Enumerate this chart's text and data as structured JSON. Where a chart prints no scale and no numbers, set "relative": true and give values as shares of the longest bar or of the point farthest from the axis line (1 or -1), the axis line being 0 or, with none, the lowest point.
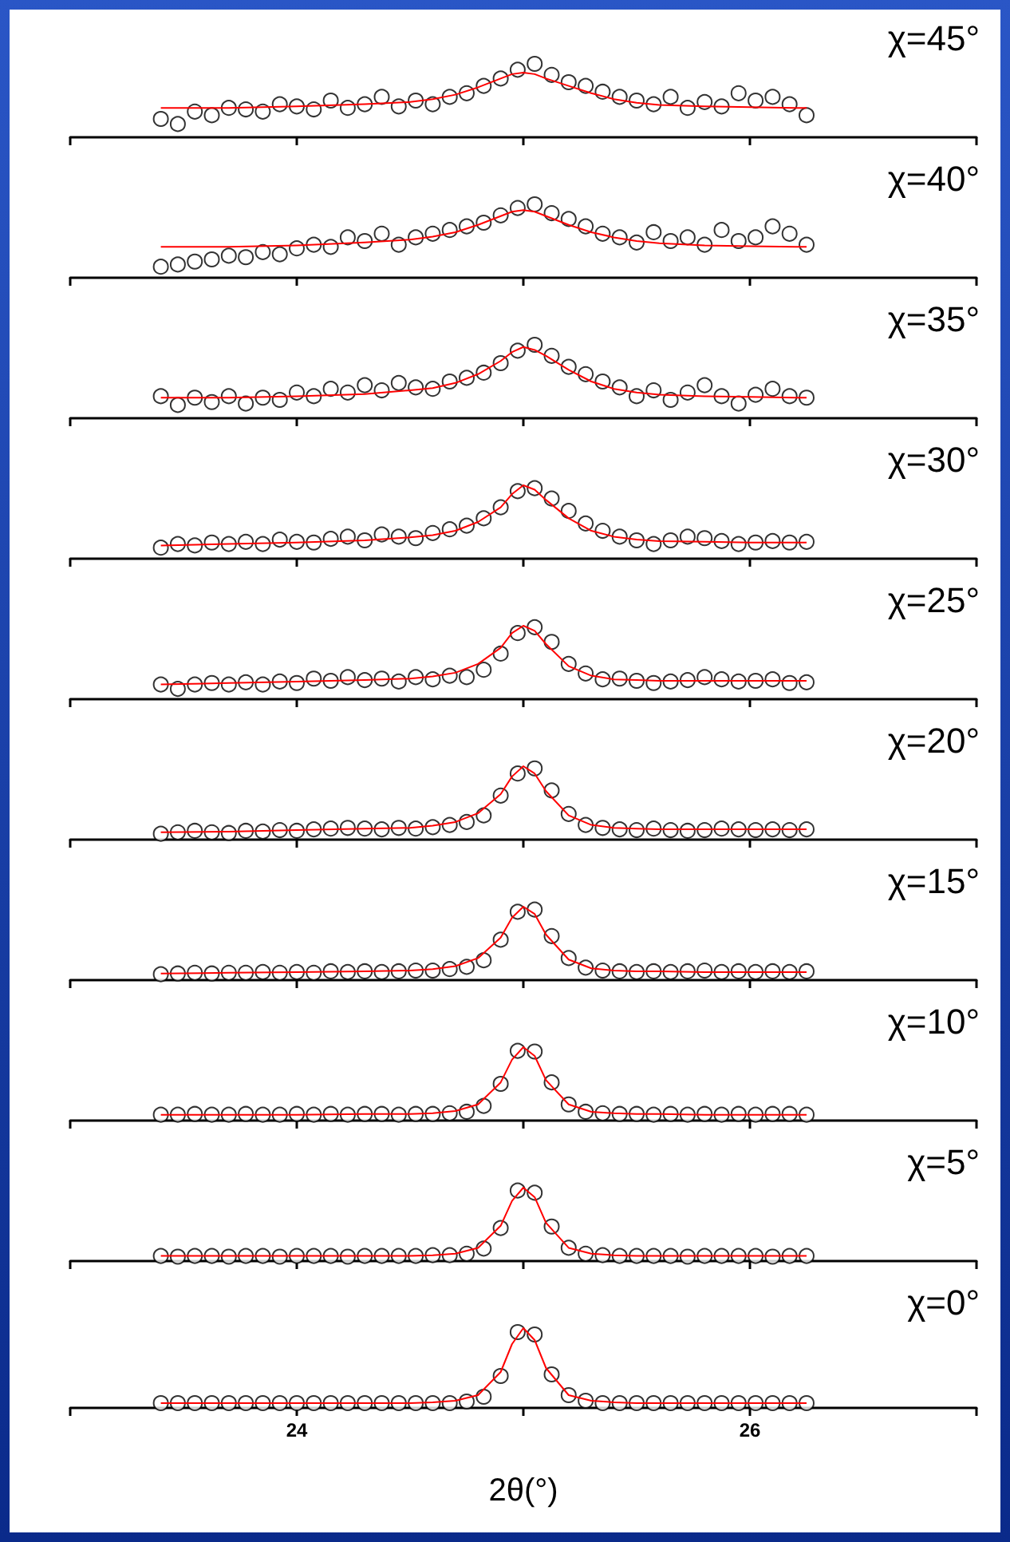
{
  "chart_data": [
    {
      "type": "scatter",
      "title": "χ=45°",
      "relative": true,
      "xlim": [
        23,
        27
      ],
      "xticks": [
        {
          "value": 23,
          "label": null
        },
        {
          "value": 24,
          "label": null
        },
        {
          "value": 25,
          "label": null
        },
        {
          "value": 26,
          "label": null
        },
        {
          "value": 27,
          "label": null
        }
      ],
      "tick_labels": false,
      "grid": false,
      "legend": false,
      "x": [
        23.4,
        23.475,
        23.55,
        23.625,
        23.7,
        23.775,
        23.85,
        23.925,
        24.0,
        24.075,
        24.15,
        24.225,
        24.3,
        24.375,
        24.45,
        24.525,
        24.6,
        24.675,
        24.75,
        24.825,
        24.9,
        24.975,
        25.05,
        25.125,
        25.2,
        25.275,
        25.35,
        25.425,
        25.5,
        25.575,
        25.65,
        25.725,
        25.8,
        25.875,
        25.95,
        26.025,
        26.1,
        26.175,
        26.25
      ],
      "series": [
        {
          "type": "scatter",
          "marker": "circle",
          "color": "#ffffff",
          "values": [
            0.25,
            0.18,
            0.35,
            0.3,
            0.4,
            0.38,
            0.35,
            0.45,
            0.42,
            0.38,
            0.5,
            0.4,
            0.45,
            0.55,
            0.42,
            0.5,
            0.45,
            0.55,
            0.6,
            0.7,
            0.8,
            0.92,
            1,
            0.85,
            0.75,
            0.7,
            0.62,
            0.55,
            0.5,
            0.45,
            0.55,
            0.4,
            0.48,
            0.42,
            0.6,
            0.5,
            0.55,
            0.45,
            0.3
          ]
        },
        {
          "type": "line",
          "marker": "none",
          "color": "#ff0000",
          "x": [
            23.4,
            23.7,
            24.0,
            24.3,
            24.5,
            24.6,
            24.7,
            24.8,
            24.9,
            24.95,
            25.0,
            25.05,
            25.1,
            25.2,
            25.3,
            25.4,
            25.5,
            25.6,
            25.8,
            26.0,
            26.2,
            26.25
          ],
          "values": [
            0.4,
            0.4,
            0.42,
            0.45,
            0.48,
            0.52,
            0.58,
            0.68,
            0.8,
            0.86,
            0.88,
            0.86,
            0.8,
            0.7,
            0.6,
            0.52,
            0.47,
            0.44,
            0.42,
            0.41,
            0.4,
            0.4
          ]
        }
      ]
    },
    {
      "type": "scatter",
      "title": "χ=40°",
      "relative": true,
      "xlim": [
        23,
        27
      ],
      "xticks": [
        {
          "value": 23,
          "label": null
        },
        {
          "value": 24,
          "label": null
        },
        {
          "value": 25,
          "label": null
        },
        {
          "value": 26,
          "label": null
        },
        {
          "value": 27,
          "label": null
        }
      ],
      "tick_labels": false,
      "grid": false,
      "legend": false,
      "x": [
        23.4,
        23.475,
        23.55,
        23.625,
        23.7,
        23.775,
        23.85,
        23.925,
        24.0,
        24.075,
        24.15,
        24.225,
        24.3,
        24.375,
        24.45,
        24.525,
        24.6,
        24.675,
        24.75,
        24.825,
        24.9,
        24.975,
        25.05,
        25.125,
        25.2,
        25.275,
        25.35,
        25.425,
        25.5,
        25.575,
        25.65,
        25.725,
        25.8,
        25.875,
        25.95,
        26.025,
        26.1,
        26.175,
        26.25
      ],
      "series": [
        {
          "type": "scatter",
          "marker": "circle",
          "color": "#ffffff",
          "values": [
            0.15,
            0.18,
            0.22,
            0.25,
            0.3,
            0.28,
            0.35,
            0.32,
            0.4,
            0.45,
            0.42,
            0.55,
            0.5,
            0.6,
            0.45,
            0.55,
            0.6,
            0.65,
            0.7,
            0.75,
            0.85,
            0.95,
            1,
            0.88,
            0.8,
            0.7,
            0.6,
            0.55,
            0.48,
            0.62,
            0.5,
            0.55,
            0.45,
            0.65,
            0.5,
            0.55,
            0.7,
            0.6,
            0.45
          ]
        },
        {
          "type": "line",
          "marker": "none",
          "color": "#ff0000",
          "x": [
            23.4,
            23.7,
            24.0,
            24.3,
            24.5,
            24.6,
            24.7,
            24.8,
            24.9,
            24.95,
            25.0,
            25.05,
            25.1,
            25.2,
            25.3,
            25.4,
            25.5,
            25.6,
            25.8,
            26.0,
            26.2,
            26.25
          ],
          "values": [
            0.42,
            0.42,
            0.44,
            0.48,
            0.52,
            0.56,
            0.62,
            0.72,
            0.84,
            0.9,
            0.92,
            0.9,
            0.84,
            0.72,
            0.62,
            0.55,
            0.5,
            0.47,
            0.44,
            0.43,
            0.42,
            0.42
          ]
        }
      ]
    },
    {
      "type": "scatter",
      "title": "χ=35°",
      "relative": true,
      "xlim": [
        23,
        27
      ],
      "xticks": [
        {
          "value": 23,
          "label": null
        },
        {
          "value": 24,
          "label": null
        },
        {
          "value": 25,
          "label": null
        },
        {
          "value": 26,
          "label": null
        },
        {
          "value": 27,
          "label": null
        }
      ],
      "tick_labels": false,
      "grid": false,
      "legend": false,
      "x": [
        23.4,
        23.475,
        23.55,
        23.625,
        23.7,
        23.775,
        23.85,
        23.925,
        24.0,
        24.075,
        24.15,
        24.225,
        24.3,
        24.375,
        24.45,
        24.525,
        24.6,
        24.675,
        24.75,
        24.825,
        24.9,
        24.975,
        25.05,
        25.125,
        25.2,
        25.275,
        25.35,
        25.425,
        25.5,
        25.575,
        25.65,
        25.725,
        25.8,
        25.875,
        25.95,
        26.025,
        26.1,
        26.175,
        26.25
      ],
      "series": [
        {
          "type": "scatter",
          "marker": "circle",
          "color": "#ffffff",
          "values": [
            0.3,
            0.18,
            0.28,
            0.22,
            0.3,
            0.2,
            0.28,
            0.25,
            0.35,
            0.3,
            0.4,
            0.35,
            0.45,
            0.38,
            0.48,
            0.42,
            0.4,
            0.5,
            0.55,
            0.62,
            0.75,
            0.92,
            1,
            0.85,
            0.7,
            0.6,
            0.5,
            0.42,
            0.3,
            0.38,
            0.25,
            0.35,
            0.45,
            0.3,
            0.2,
            0.32,
            0.4,
            0.3,
            0.28
          ]
        },
        {
          "type": "line",
          "marker": "none",
          "color": "#ff0000",
          "x": [
            23.4,
            23.7,
            24.0,
            24.3,
            24.5,
            24.6,
            24.7,
            24.8,
            24.9,
            24.95,
            25.0,
            25.05,
            25.1,
            25.2,
            25.3,
            25.4,
            25.5,
            25.6,
            25.8,
            26.0,
            26.2,
            26.25
          ],
          "values": [
            0.28,
            0.28,
            0.3,
            0.33,
            0.38,
            0.41,
            0.48,
            0.6,
            0.78,
            0.9,
            0.97,
            0.93,
            0.85,
            0.66,
            0.5,
            0.4,
            0.35,
            0.32,
            0.3,
            0.29,
            0.28,
            0.28
          ]
        }
      ]
    },
    {
      "type": "scatter",
      "title": "χ=30°",
      "relative": true,
      "xlim": [
        23,
        27
      ],
      "xticks": [
        {
          "value": 23,
          "label": null
        },
        {
          "value": 24,
          "label": null
        },
        {
          "value": 25,
          "label": null
        },
        {
          "value": 26,
          "label": null
        },
        {
          "value": 27,
          "label": null
        }
      ],
      "tick_labels": false,
      "grid": false,
      "legend": false,
      "x": [
        23.4,
        23.475,
        23.55,
        23.625,
        23.7,
        23.775,
        23.85,
        23.925,
        24.0,
        24.075,
        24.15,
        24.225,
        24.3,
        24.375,
        24.45,
        24.525,
        24.6,
        24.675,
        24.75,
        24.825,
        24.9,
        24.975,
        25.05,
        25.125,
        25.2,
        25.275,
        25.35,
        25.425,
        25.5,
        25.575,
        25.65,
        25.725,
        25.8,
        25.875,
        25.95,
        26.025,
        26.1,
        26.175,
        26.25
      ],
      "series": [
        {
          "type": "scatter",
          "marker": "circle",
          "color": "#ffffff",
          "values": [
            0.15,
            0.2,
            0.18,
            0.22,
            0.2,
            0.23,
            0.2,
            0.26,
            0.23,
            0.22,
            0.27,
            0.3,
            0.25,
            0.33,
            0.3,
            0.28,
            0.35,
            0.4,
            0.45,
            0.55,
            0.7,
            0.92,
            0.96,
            0.82,
            0.65,
            0.48,
            0.38,
            0.3,
            0.25,
            0.2,
            0.25,
            0.3,
            0.28,
            0.24,
            0.2,
            0.22,
            0.24,
            0.22,
            0.23
          ]
        },
        {
          "type": "line",
          "marker": "none",
          "color": "#ff0000",
          "x": [
            23.4,
            23.7,
            24.0,
            24.3,
            24.5,
            24.6,
            24.7,
            24.8,
            24.9,
            24.95,
            25.0,
            25.05,
            25.1,
            25.2,
            25.3,
            25.4,
            25.5,
            25.6,
            25.8,
            26.0,
            26.2,
            26.25
          ],
          "values": [
            0.18,
            0.2,
            0.22,
            0.25,
            0.29,
            0.32,
            0.38,
            0.5,
            0.7,
            0.88,
            1,
            0.94,
            0.8,
            0.55,
            0.38,
            0.3,
            0.26,
            0.24,
            0.23,
            0.22,
            0.22,
            0.22
          ]
        }
      ]
    },
    {
      "type": "scatter",
      "title": "χ=25°",
      "relative": true,
      "xlim": [
        23,
        27
      ],
      "xticks": [
        {
          "value": 23,
          "label": null
        },
        {
          "value": 24,
          "label": null
        },
        {
          "value": 25,
          "label": null
        },
        {
          "value": 26,
          "label": null
        },
        {
          "value": 27,
          "label": null
        }
      ],
      "tick_labels": false,
      "grid": false,
      "legend": false,
      "x": [
        23.4,
        23.475,
        23.55,
        23.625,
        23.7,
        23.775,
        23.85,
        23.925,
        24.0,
        24.075,
        24.15,
        24.225,
        24.3,
        24.375,
        24.45,
        24.525,
        24.6,
        24.675,
        24.75,
        24.825,
        24.9,
        24.975,
        25.05,
        25.125,
        25.2,
        25.275,
        25.35,
        25.425,
        25.5,
        25.575,
        25.65,
        25.725,
        25.8,
        25.875,
        25.95,
        26.025,
        26.1,
        26.175,
        26.25
      ],
      "series": [
        {
          "type": "scatter",
          "marker": "circle",
          "color": "#ffffff",
          "values": [
            0.2,
            0.14,
            0.2,
            0.22,
            0.2,
            0.23,
            0.2,
            0.24,
            0.22,
            0.28,
            0.25,
            0.3,
            0.26,
            0.28,
            0.24,
            0.3,
            0.27,
            0.32,
            0.3,
            0.4,
            0.62,
            0.9,
            0.98,
            0.78,
            0.48,
            0.35,
            0.27,
            0.28,
            0.25,
            0.22,
            0.24,
            0.26,
            0.3,
            0.27,
            0.24,
            0.25,
            0.27,
            0.22,
            0.23
          ]
        },
        {
          "type": "line",
          "marker": "none",
          "color": "#ff0000",
          "x": [
            23.4,
            23.7,
            24.0,
            24.3,
            24.5,
            24.6,
            24.7,
            24.8,
            24.9,
            24.95,
            25.0,
            25.05,
            25.1,
            25.2,
            25.3,
            25.4,
            25.5,
            25.6,
            25.8,
            26.0,
            26.2,
            26.25
          ],
          "values": [
            0.2,
            0.22,
            0.24,
            0.26,
            0.28,
            0.31,
            0.36,
            0.48,
            0.7,
            0.9,
            1,
            0.93,
            0.75,
            0.45,
            0.32,
            0.27,
            0.26,
            0.25,
            0.25,
            0.25,
            0.25,
            0.25
          ]
        }
      ]
    },
    {
      "type": "scatter",
      "title": "χ=20°",
      "relative": true,
      "xlim": [
        23,
        27
      ],
      "xticks": [
        {
          "value": 23,
          "label": null
        },
        {
          "value": 24,
          "label": null
        },
        {
          "value": 25,
          "label": null
        },
        {
          "value": 26,
          "label": null
        },
        {
          "value": 27,
          "label": null
        }
      ],
      "tick_labels": false,
      "grid": false,
      "legend": false,
      "x": [
        23.4,
        23.475,
        23.55,
        23.625,
        23.7,
        23.775,
        23.85,
        23.925,
        24.0,
        24.075,
        24.15,
        24.225,
        24.3,
        24.375,
        24.45,
        24.525,
        24.6,
        24.675,
        24.75,
        24.825,
        24.9,
        24.975,
        25.05,
        25.125,
        25.2,
        25.275,
        25.35,
        25.425,
        25.5,
        25.575,
        25.65,
        25.725,
        25.8,
        25.875,
        25.95,
        26.025,
        26.1,
        26.175,
        26.25
      ],
      "series": [
        {
          "type": "scatter",
          "marker": "circle",
          "color": "#ffffff",
          "values": [
            0.08,
            0.1,
            0.12,
            0.1,
            0.09,
            0.12,
            0.11,
            0.13,
            0.12,
            0.14,
            0.15,
            0.16,
            0.15,
            0.14,
            0.16,
            0.15,
            0.17,
            0.2,
            0.24,
            0.33,
            0.6,
            0.9,
            0.97,
            0.67,
            0.35,
            0.2,
            0.16,
            0.14,
            0.13,
            0.15,
            0.13,
            0.12,
            0.13,
            0.15,
            0.14,
            0.13,
            0.14,
            0.13,
            0.14
          ]
        },
        {
          "type": "line",
          "marker": "none",
          "color": "#ff0000",
          "x": [
            23.4,
            23.7,
            24.0,
            24.3,
            24.5,
            24.6,
            24.7,
            24.8,
            24.9,
            24.95,
            25.0,
            25.05,
            25.1,
            25.2,
            25.3,
            25.4,
            25.5,
            25.6,
            25.8,
            26.0,
            26.2,
            26.25
          ],
          "values": [
            0.1,
            0.11,
            0.13,
            0.15,
            0.16,
            0.19,
            0.24,
            0.36,
            0.62,
            0.86,
            1,
            0.9,
            0.66,
            0.33,
            0.2,
            0.16,
            0.15,
            0.14,
            0.14,
            0.14,
            0.14,
            0.14
          ]
        }
      ]
    },
    {
      "type": "scatter",
      "title": "χ=15°",
      "relative": true,
      "xlim": [
        23,
        27
      ],
      "xticks": [
        {
          "value": 23,
          "label": null
        },
        {
          "value": 24,
          "label": null
        },
        {
          "value": 25,
          "label": null
        },
        {
          "value": 26,
          "label": null
        },
        {
          "value": 27,
          "label": null
        }
      ],
      "tick_labels": false,
      "grid": false,
      "legend": false,
      "x": [
        23.4,
        23.475,
        23.55,
        23.625,
        23.7,
        23.775,
        23.85,
        23.925,
        24.0,
        24.075,
        24.15,
        24.225,
        24.3,
        24.375,
        24.45,
        24.525,
        24.6,
        24.675,
        24.75,
        24.825,
        24.9,
        24.975,
        25.05,
        25.125,
        25.2,
        25.275,
        25.35,
        25.425,
        25.5,
        25.575,
        25.65,
        25.725,
        25.8,
        25.875,
        25.95,
        26.025,
        26.1,
        26.175,
        26.25
      ],
      "series": [
        {
          "type": "scatter",
          "marker": "circle",
          "color": "#ffffff",
          "values": [
            0.08,
            0.09,
            0.1,
            0.09,
            0.1,
            0.1,
            0.11,
            0.1,
            0.11,
            0.1,
            0.12,
            0.11,
            0.12,
            0.11,
            0.12,
            0.13,
            0.13,
            0.15,
            0.18,
            0.27,
            0.55,
            0.93,
            0.96,
            0.6,
            0.3,
            0.17,
            0.13,
            0.12,
            0.11,
            0.12,
            0.11,
            0.12,
            0.13,
            0.11,
            0.12,
            0.11,
            0.12,
            0.11,
            0.12
          ]
        },
        {
          "type": "line",
          "marker": "none",
          "color": "#ff0000",
          "x": [
            23.4,
            23.7,
            24.0,
            24.3,
            24.5,
            24.6,
            24.7,
            24.8,
            24.9,
            24.95,
            25.0,
            25.05,
            25.1,
            25.2,
            25.3,
            25.4,
            25.5,
            25.6,
            25.8,
            26.0,
            26.2,
            26.25
          ],
          "values": [
            0.09,
            0.1,
            0.11,
            0.12,
            0.13,
            0.15,
            0.19,
            0.3,
            0.58,
            0.85,
            1,
            0.9,
            0.62,
            0.28,
            0.16,
            0.13,
            0.12,
            0.12,
            0.11,
            0.11,
            0.11,
            0.11
          ]
        }
      ]
    },
    {
      "type": "scatter",
      "title": "χ=10°",
      "relative": true,
      "xlim": [
        23,
        27
      ],
      "xticks": [
        {
          "value": 23,
          "label": null
        },
        {
          "value": 24,
          "label": null
        },
        {
          "value": 25,
          "label": null
        },
        {
          "value": 26,
          "label": null
        },
        {
          "value": 27,
          "label": null
        }
      ],
      "tick_labels": false,
      "grid": false,
      "legend": false,
      "x": [
        23.4,
        23.475,
        23.55,
        23.625,
        23.7,
        23.775,
        23.85,
        23.925,
        24.0,
        24.075,
        24.15,
        24.225,
        24.3,
        24.375,
        24.45,
        24.525,
        24.6,
        24.675,
        24.75,
        24.825,
        24.9,
        24.975,
        25.05,
        25.125,
        25.2,
        25.275,
        25.35,
        25.425,
        25.5,
        25.575,
        25.65,
        25.725,
        25.8,
        25.875,
        25.95,
        26.025,
        26.1,
        26.175,
        26.25
      ],
      "series": [
        {
          "type": "scatter",
          "marker": "circle",
          "color": "#ffffff",
          "values": [
            0.08,
            0.08,
            0.09,
            0.08,
            0.08,
            0.09,
            0.08,
            0.08,
            0.09,
            0.08,
            0.09,
            0.08,
            0.09,
            0.09,
            0.08,
            0.09,
            0.09,
            0.1,
            0.12,
            0.2,
            0.5,
            0.95,
            0.94,
            0.52,
            0.22,
            0.12,
            0.1,
            0.09,
            0.09,
            0.08,
            0.09,
            0.08,
            0.09,
            0.08,
            0.09,
            0.08,
            0.09,
            0.09,
            0.08
          ]
        },
        {
          "type": "line",
          "marker": "none",
          "color": "#ff0000",
          "x": [
            23.4,
            23.7,
            24.0,
            24.3,
            24.5,
            24.6,
            24.7,
            24.8,
            24.9,
            24.95,
            25.0,
            25.05,
            25.1,
            25.2,
            25.3,
            25.4,
            25.5,
            25.6,
            25.8,
            26.0,
            26.2,
            26.25
          ],
          "values": [
            0.08,
            0.08,
            0.08,
            0.09,
            0.09,
            0.1,
            0.13,
            0.22,
            0.52,
            0.83,
            1,
            0.88,
            0.55,
            0.22,
            0.12,
            0.1,
            0.09,
            0.09,
            0.08,
            0.08,
            0.08,
            0.08
          ]
        }
      ]
    },
    {
      "type": "scatter",
      "title": "χ=5°",
      "relative": true,
      "xlim": [
        23,
        27
      ],
      "xticks": [
        {
          "value": 23,
          "label": null
        },
        {
          "value": 24,
          "label": null
        },
        {
          "value": 25,
          "label": null
        },
        {
          "value": 26,
          "label": null
        },
        {
          "value": 27,
          "label": null
        }
      ],
      "tick_labels": false,
      "grid": false,
      "legend": false,
      "x": [
        23.4,
        23.475,
        23.55,
        23.625,
        23.7,
        23.775,
        23.85,
        23.925,
        24.0,
        24.075,
        24.15,
        24.225,
        24.3,
        24.375,
        24.45,
        24.525,
        24.6,
        24.675,
        24.75,
        24.825,
        24.9,
        24.975,
        25.05,
        25.125,
        25.2,
        25.275,
        25.35,
        25.425,
        25.5,
        25.575,
        25.65,
        25.725,
        25.8,
        25.875,
        25.95,
        26.025,
        26.1,
        26.175,
        26.25
      ],
      "series": [
        {
          "type": "scatter",
          "marker": "circle",
          "color": "#ffffff",
          "values": [
            0.07,
            0.06,
            0.07,
            0.07,
            0.06,
            0.07,
            0.07,
            0.06,
            0.07,
            0.07,
            0.07,
            0.06,
            0.07,
            0.07,
            0.07,
            0.07,
            0.08,
            0.08,
            0.1,
            0.17,
            0.45,
            0.96,
            0.93,
            0.47,
            0.18,
            0.1,
            0.08,
            0.07,
            0.07,
            0.07,
            0.07,
            0.06,
            0.07,
            0.07,
            0.07,
            0.07,
            0.06,
            0.07,
            0.07
          ]
        },
        {
          "type": "line",
          "marker": "none",
          "color": "#ff0000",
          "x": [
            23.4,
            23.7,
            24.0,
            24.3,
            24.5,
            24.6,
            24.7,
            24.8,
            24.9,
            24.95,
            25.0,
            25.05,
            25.1,
            25.2,
            25.3,
            25.4,
            25.5,
            25.6,
            25.8,
            26.0,
            26.2,
            26.25
          ],
          "values": [
            0.07,
            0.07,
            0.07,
            0.07,
            0.07,
            0.08,
            0.1,
            0.18,
            0.48,
            0.82,
            1,
            0.87,
            0.52,
            0.18,
            0.1,
            0.08,
            0.07,
            0.07,
            0.07,
            0.07,
            0.07,
            0.07
          ]
        }
      ]
    },
    {
      "type": "scatter",
      "title": "χ=0°",
      "xlabel": "2θ(°)",
      "relative": true,
      "xlim": [
        23,
        27
      ],
      "xticks": [
        {
          "value": 23,
          "label": null
        },
        24,
        {
          "value": 25,
          "label": null
        },
        26,
        {
          "value": 27,
          "label": null
        }
      ],
      "tick_labels": "x",
      "grid": false,
      "legend": false,
      "x": [
        23.4,
        23.475,
        23.55,
        23.625,
        23.7,
        23.775,
        23.85,
        23.925,
        24.0,
        24.075,
        24.15,
        24.225,
        24.3,
        24.375,
        24.45,
        24.525,
        24.6,
        24.675,
        24.75,
        24.825,
        24.9,
        24.975,
        25.05,
        25.125,
        25.2,
        25.275,
        25.35,
        25.425,
        25.5,
        25.575,
        25.65,
        25.725,
        25.8,
        25.875,
        25.95,
        26.025,
        26.1,
        26.175,
        26.25
      ],
      "series": [
        {
          "type": "scatter",
          "marker": "circle",
          "color": "#ffffff",
          "values": [
            0.06,
            0.06,
            0.06,
            0.06,
            0.06,
            0.06,
            0.06,
            0.06,
            0.06,
            0.06,
            0.06,
            0.06,
            0.06,
            0.06,
            0.06,
            0.06,
            0.06,
            0.06,
            0.08,
            0.14,
            0.4,
            0.95,
            0.92,
            0.42,
            0.16,
            0.09,
            0.06,
            0.06,
            0.06,
            0.06,
            0.06,
            0.06,
            0.06,
            0.06,
            0.06,
            0.06,
            0.06,
            0.06,
            0.06
          ]
        },
        {
          "type": "line",
          "marker": "none",
          "color": "#ff0000",
          "x": [
            23.4,
            23.7,
            24.0,
            24.3,
            24.5,
            24.6,
            24.7,
            24.8,
            24.9,
            24.95,
            25.0,
            25.05,
            25.1,
            25.2,
            25.3,
            25.4,
            25.5,
            25.6,
            25.8,
            26.0,
            26.2,
            26.25
          ],
          "values": [
            0.06,
            0.06,
            0.06,
            0.06,
            0.06,
            0.07,
            0.09,
            0.16,
            0.45,
            0.8,
            1,
            0.85,
            0.5,
            0.16,
            0.09,
            0.07,
            0.06,
            0.06,
            0.06,
            0.06,
            0.06,
            0.06
          ]
        }
      ]
    }
  ]
}
